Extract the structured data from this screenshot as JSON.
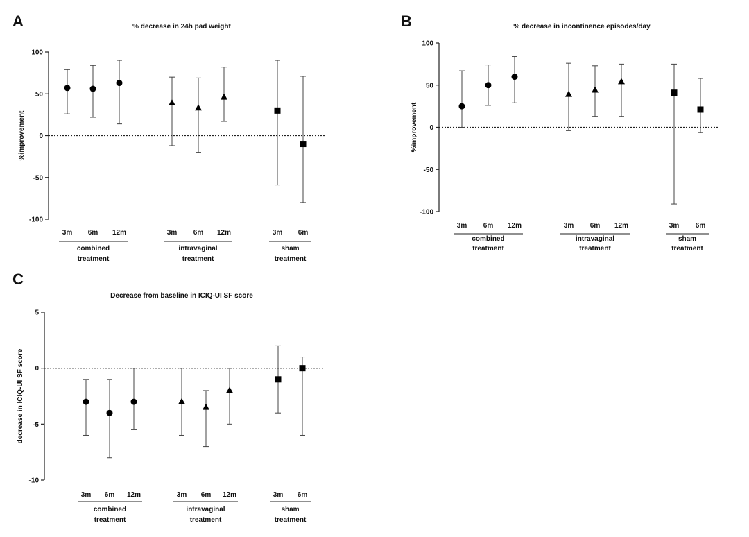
{
  "chart_data": [
    {
      "panel": "A",
      "type": "scatter",
      "title": "% decrease in 24h pad weight",
      "ylabel": "%improvement",
      "ylim": [
        -100,
        100
      ],
      "yticks": [
        100,
        50,
        0,
        -50,
        -100
      ],
      "reference_line": 0,
      "groups": [
        {
          "label_lines": [
            "combined",
            "treatment"
          ],
          "marker": "circle",
          "points": [
            {
              "label": "3m",
              "y": 57,
              "low": 26,
              "high": 79
            },
            {
              "label": "6m",
              "y": 56,
              "low": 22,
              "high": 84
            },
            {
              "label": "12m",
              "y": 63,
              "low": 14,
              "high": 90
            }
          ]
        },
        {
          "label_lines": [
            "intravaginal",
            "treatment"
          ],
          "marker": "triangle",
          "points": [
            {
              "label": "3m",
              "y": 39,
              "low": -12,
              "high": 70
            },
            {
              "label": "6m",
              "y": 33,
              "low": -20,
              "high": 69
            },
            {
              "label": "12m",
              "y": 46,
              "low": 17,
              "high": 82
            }
          ]
        },
        {
          "label_lines": [
            "sham",
            "treatment"
          ],
          "marker": "square",
          "points": [
            {
              "label": "3m",
              "y": 30,
              "low": -59,
              "high": 90
            },
            {
              "label": "6m",
              "y": -10,
              "low": -80,
              "high": 71
            }
          ]
        }
      ]
    },
    {
      "panel": "B",
      "type": "scatter",
      "title": "% decrease in incontinence episodes/day",
      "ylabel": "%improvement",
      "ylim": [
        -100,
        100
      ],
      "yticks": [
        100,
        50,
        0,
        -50,
        -100
      ],
      "reference_line": 0,
      "groups": [
        {
          "label_lines": [
            "combined",
            "treatment"
          ],
          "marker": "circle",
          "points": [
            {
              "label": "3m",
              "y": 25,
              "low": 0,
              "high": 67
            },
            {
              "label": "6m",
              "y": 50,
              "low": 26,
              "high": 74
            },
            {
              "label": "12m",
              "y": 60,
              "low": 29,
              "high": 84
            }
          ]
        },
        {
          "label_lines": [
            "intravaginal",
            "treatment"
          ],
          "marker": "triangle",
          "points": [
            {
              "label": "3m",
              "y": 39,
              "low": -4,
              "high": 76
            },
            {
              "label": "6m",
              "y": 44,
              "low": 13,
              "high": 73
            },
            {
              "label": "12m",
              "y": 54,
              "low": 13,
              "high": 75
            }
          ]
        },
        {
          "label_lines": [
            "sham",
            "treatment"
          ],
          "marker": "square",
          "points": [
            {
              "label": "3m",
              "y": 41,
              "low": -91,
              "high": 75
            },
            {
              "label": "6m",
              "y": 21,
              "low": -6,
              "high": 58
            }
          ]
        }
      ]
    },
    {
      "panel": "C",
      "type": "scatter",
      "title": "Decrease from baseline in ICIQ-UI SF score",
      "ylabel": "decrease in ICIQ-UI SF score",
      "ylim": [
        -10,
        5
      ],
      "yticks": [
        5,
        0,
        -5,
        -10
      ],
      "reference_line": 0,
      "groups": [
        {
          "label_lines": [
            "combined",
            "treatment"
          ],
          "marker": "circle",
          "points": [
            {
              "label": "3m",
              "y": -3,
              "low": -6,
              "high": -1
            },
            {
              "label": "6m",
              "y": -4,
              "low": -8,
              "high": -1
            },
            {
              "label": "12m",
              "y": -3,
              "low": -5.5,
              "high": 0
            }
          ]
        },
        {
          "label_lines": [
            "intravaginal",
            "treatment"
          ],
          "marker": "triangle",
          "points": [
            {
              "label": "3m",
              "y": -3,
              "low": -6,
              "high": 0
            },
            {
              "label": "6m",
              "y": -3.5,
              "low": -7,
              "high": -2
            },
            {
              "label": "12m",
              "y": -2,
              "low": -5,
              "high": 0
            }
          ]
        },
        {
          "label_lines": [
            "sham",
            "treatment"
          ],
          "marker": "square",
          "points": [
            {
              "label": "3m",
              "y": -1,
              "low": -4,
              "high": 2
            },
            {
              "label": "6m",
              "y": 0,
              "low": -6,
              "high": 1
            }
          ]
        }
      ]
    }
  ]
}
